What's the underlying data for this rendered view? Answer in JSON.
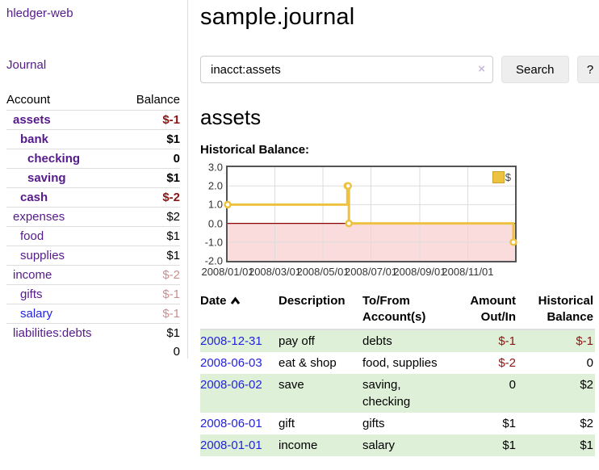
{
  "app": {
    "brand": "hledger-web",
    "nav_journal": "Journal"
  },
  "sidebar": {
    "headers": {
      "account": "Account",
      "balance": "Balance"
    },
    "accounts": [
      {
        "name": "assets",
        "balance": "$-1",
        "level": 0,
        "bold": true,
        "negative": true,
        "faded": false,
        "blue": false
      },
      {
        "name": "bank",
        "balance": "$1",
        "level": 1,
        "bold": true,
        "negative": false,
        "faded": false,
        "blue": false
      },
      {
        "name": "checking",
        "balance": "0",
        "level": 2,
        "bold": true,
        "negative": false,
        "faded": false,
        "blue": false
      },
      {
        "name": "saving",
        "balance": "$1",
        "level": 2,
        "bold": true,
        "negative": false,
        "faded": false,
        "blue": false
      },
      {
        "name": "cash",
        "balance": "$-2",
        "level": 1,
        "bold": true,
        "negative": true,
        "faded": false,
        "blue": false
      },
      {
        "name": "expenses",
        "balance": "$2",
        "level": 0,
        "bold": false,
        "negative": false,
        "faded": false,
        "blue": false
      },
      {
        "name": "food",
        "balance": "$1",
        "level": 1,
        "bold": false,
        "negative": false,
        "faded": false,
        "blue": false
      },
      {
        "name": "supplies",
        "balance": "$1",
        "level": 1,
        "bold": false,
        "negative": false,
        "faded": false,
        "blue": false
      },
      {
        "name": "income",
        "balance": "$-2",
        "level": 0,
        "bold": false,
        "negative": true,
        "faded": true,
        "blue": false
      },
      {
        "name": "gifts",
        "balance": "$-1",
        "level": 1,
        "bold": false,
        "negative": true,
        "faded": true,
        "blue": false
      },
      {
        "name": "salary",
        "balance": "$-1",
        "level": 1,
        "bold": false,
        "negative": true,
        "faded": true,
        "blue": true
      },
      {
        "name": "liabilities:debts",
        "balance": "$1",
        "level": 0,
        "bold": false,
        "negative": false,
        "faded": false,
        "blue": false
      }
    ],
    "total": "0"
  },
  "header": {
    "title": "sample.journal"
  },
  "search": {
    "value": "inacct:assets",
    "clear_icon": "×",
    "search_label": "Search",
    "help_label": "?"
  },
  "account_page": {
    "heading": "assets",
    "chart_label": "Historical Balance:"
  },
  "chart_data": {
    "type": "line",
    "step": true,
    "title": "Historical Balance:",
    "series": [
      {
        "name": "$",
        "color": "#edc240",
        "points": [
          [
            "2008-01-01",
            1
          ],
          [
            "2008-06-01",
            2
          ],
          [
            "2008-06-02",
            2
          ],
          [
            "2008-06-03",
            0
          ],
          [
            "2008-12-31",
            -1
          ]
        ]
      }
    ],
    "xmin": "2008-01-01",
    "xmax": "2008-12-31",
    "xticks": [
      {
        "label": "2008/01/01",
        "date": "2008-01-01"
      },
      {
        "label": "2008/03/01",
        "date": "2008-03-01"
      },
      {
        "label": "2008/05/01",
        "date": "2008-05-01"
      },
      {
        "label": "2008/07/01",
        "date": "2008-07-01"
      },
      {
        "label": "2008/09/01",
        "date": "2008-09-01"
      },
      {
        "label": "2008/11/01",
        "date": "2008-11-01"
      }
    ],
    "yticks": [
      -2,
      -1,
      0,
      1,
      2,
      3
    ],
    "ylim": [
      -2,
      3
    ],
    "grid": true,
    "legend_position": "top-right",
    "grid_color": "#dddddd",
    "border_color": "#545454",
    "negative_region_color": "#fbdcdc",
    "zero_line_color": "#8b0000"
  },
  "register": {
    "headers": {
      "date": "Date",
      "description": "Description",
      "tofrom_line1": "To/From",
      "tofrom_line2": "Account(s)",
      "amount_line1": "Amount",
      "amount_line2": "Out/In",
      "hist_line1": "Historical",
      "hist_line2": "Balance"
    },
    "rows": [
      {
        "date": "2008-12-31",
        "description": "pay off",
        "accounts": "debts",
        "amount": "$-1",
        "balance": "$-1",
        "amount_neg": true,
        "balance_neg": true
      },
      {
        "date": "2008-06-03",
        "description": "eat & shop",
        "accounts": "food, supplies",
        "amount": "$-2",
        "balance": "0",
        "amount_neg": true,
        "balance_neg": false
      },
      {
        "date": "2008-06-02",
        "description": "save",
        "accounts": "saving, checking",
        "amount": "0",
        "balance": "$2",
        "amount_neg": false,
        "balance_neg": false
      },
      {
        "date": "2008-06-01",
        "description": "gift",
        "accounts": "gifts",
        "amount": "$1",
        "balance": "$2",
        "amount_neg": false,
        "balance_neg": false
      },
      {
        "date": "2008-01-01",
        "description": "income",
        "accounts": "salary",
        "amount": "$1",
        "balance": "$1",
        "amount_neg": false,
        "balance_neg": false
      }
    ]
  }
}
